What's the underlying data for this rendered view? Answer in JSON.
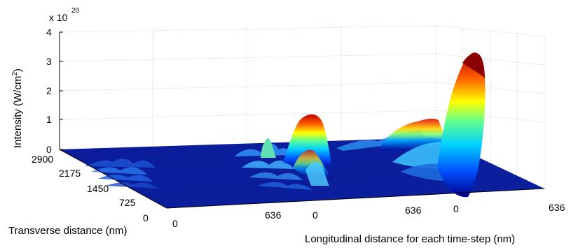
{
  "chart_data": {
    "type": "surface",
    "title": "",
    "zlabel": "Intensity (W/cm²)",
    "zlabel_main": "Intensity (W/cm",
    "zlabel_sup": "2",
    "zlabel_close": ")",
    "xlabel": "Longitudinal distance for each time-step (nm)",
    "ylabel": "Transverse distance (nm)",
    "z_multiplier_base": "x 10",
    "z_multiplier_exp": "20",
    "z_ticks": [
      "0",
      "1",
      "2",
      "3",
      "4"
    ],
    "zlim": [
      0,
      4
    ],
    "y_ticks": [
      "0",
      "725",
      "1450",
      "2175",
      "2900"
    ],
    "ylim": [
      0,
      2900
    ],
    "x_segments": [
      {
        "start": "0",
        "end": "636"
      },
      {
        "start": "0",
        "end": "636"
      },
      {
        "start": "0",
        "end": "636"
      }
    ],
    "grid": true,
    "colormap": "jet",
    "peaks": [
      {
        "time_step": 1,
        "peak_intensity": 0.4
      },
      {
        "time_step": 2,
        "peak_intensity": 1.2
      },
      {
        "time_step": 3,
        "peak_intensity": 3.6
      }
    ]
  }
}
